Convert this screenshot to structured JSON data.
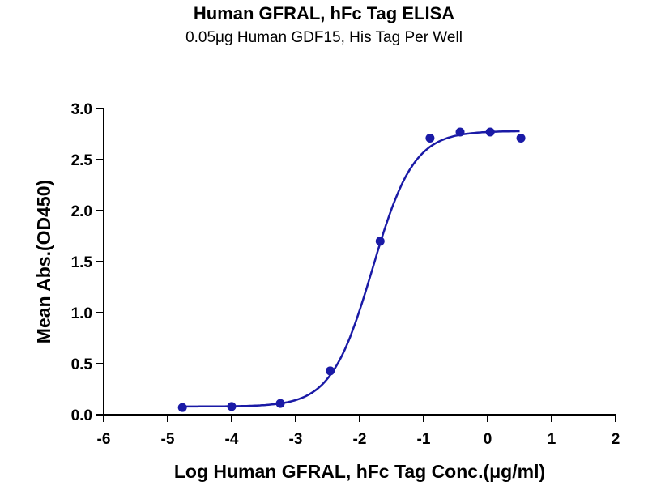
{
  "chart_data": {
    "type": "scatter",
    "title": "Human GFRAL, hFc Tag ELISA",
    "subtitle": "0.05μg Human GDF15, His Tag Per Well",
    "xlabel": "Log Human GFRAL, hFc Tag Conc.(μg/ml)",
    "ylabel": "Mean Abs.(OD450)",
    "xlim": [
      -6,
      2
    ],
    "ylim": [
      0,
      3.0
    ],
    "xticks": [
      "-6",
      "-5",
      "-4",
      "-3",
      "-2",
      "-1",
      "0",
      "1",
      "2"
    ],
    "yticks": [
      "0.0",
      "0.5",
      "1.0",
      "1.5",
      "2.0",
      "2.5",
      "3.0"
    ],
    "grid": false,
    "color": "#1a1aa6",
    "points": {
      "x": [
        -4.77,
        -4.0,
        -3.24,
        -2.46,
        -1.68,
        -0.9,
        -0.43,
        0.04,
        0.52
      ],
      "y": [
        0.07,
        0.08,
        0.11,
        0.43,
        1.7,
        2.71,
        2.77,
        2.77,
        2.71
      ]
    },
    "fit": {
      "model": "4PL",
      "bottom": 0.08,
      "top": 2.78,
      "logEC50": -1.8,
      "hill": 1.35,
      "xrange": [
        -4.8,
        0.5
      ]
    }
  }
}
